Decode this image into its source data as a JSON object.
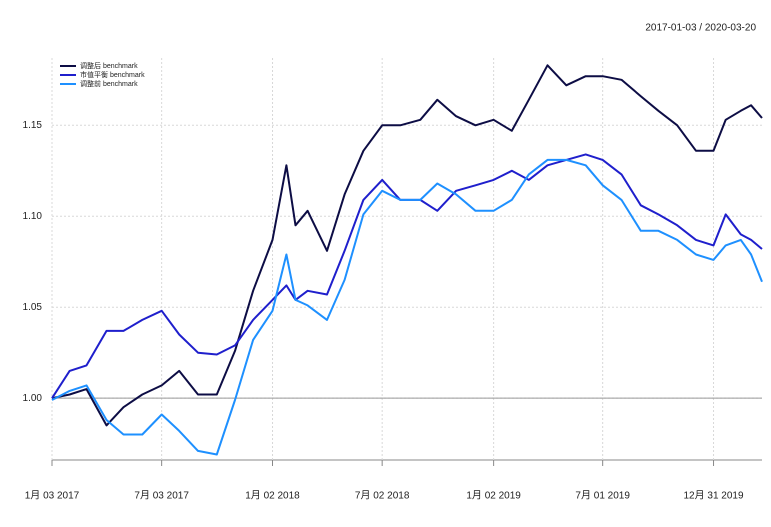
{
  "chart_data": {
    "type": "line",
    "subtitle": "2017-01-03 / 2020-03-20",
    "x": [
      "2017-01-03",
      "2017-02-01",
      "2017-03-01",
      "2017-04-03",
      "2017-05-01",
      "2017-06-01",
      "2017-07-03",
      "2017-08-01",
      "2017-09-01",
      "2017-10-02",
      "2017-11-01",
      "2017-12-01",
      "2018-01-02",
      "2018-01-25",
      "2018-02-09",
      "2018-03-01",
      "2018-04-02",
      "2018-05-01",
      "2018-06-01",
      "2018-07-02",
      "2018-08-01",
      "2018-09-03",
      "2018-10-01",
      "2018-11-01",
      "2018-12-03",
      "2019-01-02",
      "2019-02-01",
      "2019-03-01",
      "2019-04-01",
      "2019-05-02",
      "2019-06-03",
      "2019-07-01",
      "2019-08-01",
      "2019-09-02",
      "2019-10-01",
      "2019-11-01",
      "2019-12-02",
      "2019-12-31",
      "2020-01-20",
      "2020-02-14",
      "2020-03-02",
      "2020-03-20"
    ],
    "series": [
      {
        "name": "调整后 benchmark",
        "color": "#0d0d45",
        "values": [
          1.0,
          1.002,
          1.005,
          0.985,
          0.995,
          1.002,
          1.007,
          1.015,
          1.002,
          1.002,
          1.026,
          1.059,
          1.087,
          1.128,
          1.095,
          1.103,
          1.081,
          1.112,
          1.136,
          1.15,
          1.15,
          1.153,
          1.164,
          1.155,
          1.15,
          1.153,
          1.147,
          1.164,
          1.183,
          1.172,
          1.177,
          1.177,
          1.175,
          1.166,
          1.158,
          1.15,
          1.136,
          1.136,
          1.153,
          1.158,
          1.161,
          1.154
        ]
      },
      {
        "name": "市值平衡 benchmark",
        "color": "#1f1fcc",
        "values": [
          1.0,
          1.015,
          1.018,
          1.037,
          1.037,
          1.043,
          1.048,
          1.035,
          1.025,
          1.024,
          1.029,
          1.043,
          1.054,
          1.062,
          1.054,
          1.059,
          1.057,
          1.081,
          1.109,
          1.12,
          1.109,
          1.109,
          1.103,
          1.114,
          1.117,
          1.12,
          1.125,
          1.12,
          1.128,
          1.131,
          1.134,
          1.131,
          1.123,
          1.106,
          1.101,
          1.095,
          1.087,
          1.084,
          1.101,
          1.09,
          1.087,
          1.082
        ]
      },
      {
        "name": "调整前 benchmark",
        "color": "#1e90ff",
        "values": [
          0.999,
          1.004,
          1.007,
          0.988,
          0.98,
          0.98,
          0.991,
          0.982,
          0.971,
          0.969,
          0.999,
          1.032,
          1.048,
          1.079,
          1.054,
          1.051,
          1.043,
          1.065,
          1.101,
          1.114,
          1.109,
          1.109,
          1.118,
          1.112,
          1.103,
          1.103,
          1.109,
          1.123,
          1.131,
          1.131,
          1.128,
          1.117,
          1.109,
          1.092,
          1.092,
          1.087,
          1.079,
          1.076,
          1.084,
          1.087,
          1.079,
          1.064
        ]
      }
    ],
    "xlim": [
      "2017-01-03",
      "2020-03-20"
    ],
    "xticks": [
      {
        "value": "2017-01-03",
        "label": "1月 03 2017"
      },
      {
        "value": "2017-07-03",
        "label": "7月 03 2017"
      },
      {
        "value": "2018-01-02",
        "label": "1月 02 2018"
      },
      {
        "value": "2018-07-02",
        "label": "7月 02 2018"
      },
      {
        "value": "2019-01-02",
        "label": "1月 02 2019"
      },
      {
        "value": "2019-07-01",
        "label": "7月 01 2019"
      },
      {
        "value": "2019-12-31",
        "label": "12月 31 2019"
      }
    ],
    "ylim": [
      0.966,
      1.187
    ],
    "yticks": [
      {
        "value": 1.0,
        "label": "1.00"
      },
      1.05,
      {
        "value": 1.1,
        "label": "1.10"
      },
      1.15
    ],
    "grid": true,
    "legend": "top-left"
  }
}
